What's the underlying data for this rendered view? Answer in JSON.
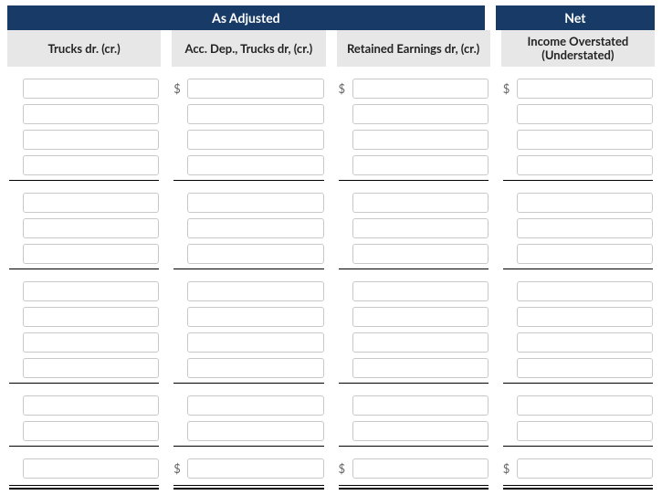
{
  "headers": {
    "as_adjusted": "As Adjusted",
    "net": "Net"
  },
  "columns": [
    {
      "key": "trucks",
      "label": "Trucks dr. (cr.)",
      "under": "as_adjusted",
      "currency_first": false,
      "currency_total": false
    },
    {
      "key": "acc_dep",
      "label": "Acc. Dep., Trucks dr, (cr.)",
      "under": "as_adjusted",
      "currency_first": true,
      "currency_total": true
    },
    {
      "key": "re",
      "label": "Retained Earnings dr, (cr.)",
      "under": "as_adjusted",
      "currency_first": true,
      "currency_total": true
    },
    {
      "key": "ni",
      "label": "Income Overstated (Understated)",
      "under": "net",
      "currency_first": true,
      "currency_total": true
    }
  ],
  "symbols": {
    "currency": "$"
  },
  "groups": [
    {
      "rows": 4,
      "rule_after": true
    },
    {
      "rows": 3,
      "rule_after": true
    },
    {
      "rows": 4,
      "rule_after": true
    },
    {
      "rows": 2,
      "rule_after": true
    }
  ],
  "values": {
    "trucks": [
      [
        "",
        "",
        "",
        ""
      ],
      [
        "",
        "",
        ""
      ],
      [
        "",
        "",
        "",
        ""
      ],
      [
        "",
        ""
      ]
    ],
    "acc_dep": [
      [
        "",
        "",
        "",
        ""
      ],
      [
        "",
        "",
        ""
      ],
      [
        "",
        "",
        "",
        ""
      ],
      [
        "",
        ""
      ]
    ],
    "re": [
      [
        "",
        "",
        "",
        ""
      ],
      [
        "",
        "",
        ""
      ],
      [
        "",
        "",
        "",
        ""
      ],
      [
        "",
        ""
      ]
    ],
    "ni": [
      [
        "",
        "",
        "",
        ""
      ],
      [
        "",
        "",
        ""
      ],
      [
        "",
        "",
        "",
        ""
      ],
      [
        "",
        ""
      ]
    ]
  },
  "totals": {
    "trucks": "",
    "acc_dep": "",
    "re": "",
    "ni": ""
  },
  "colors": {
    "band_bg": "#173a66",
    "band_text": "#ffffff",
    "sub_bg": "#e7e7e7",
    "input_border": "#c9c9c9",
    "rule": "#000000"
  }
}
